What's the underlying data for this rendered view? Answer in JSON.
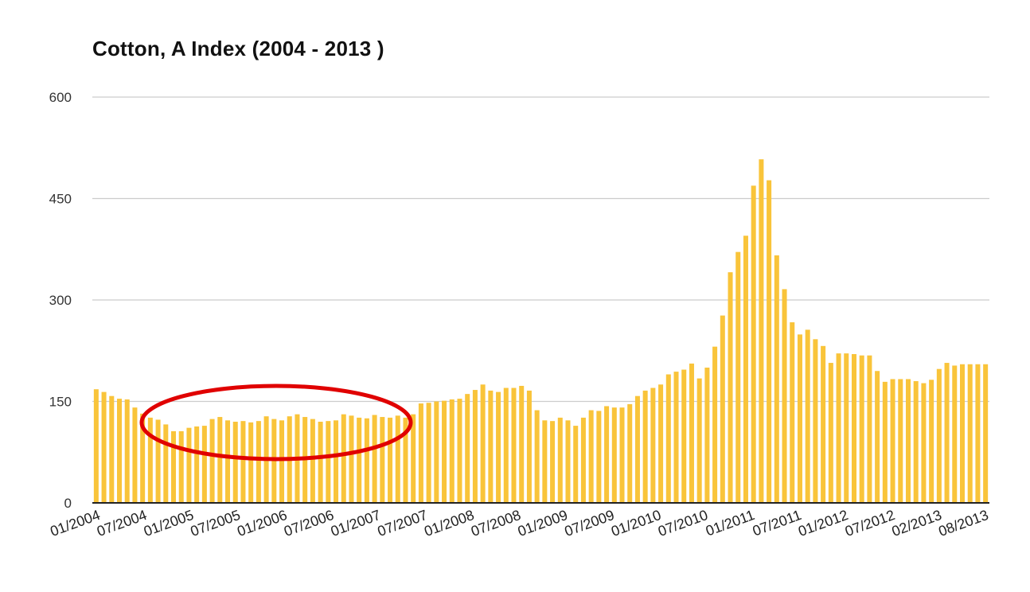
{
  "chart_data": {
    "type": "bar",
    "title": "Cotton, A Index (2004 - 2013 )",
    "xlabel": "",
    "ylabel": "",
    "ylim": [
      0,
      600
    ],
    "yticks": [
      0,
      150,
      300,
      450,
      600
    ],
    "grid": true,
    "legend": "none",
    "bar_color": "#f9c43a",
    "annotation": {
      "shape": "ellipse",
      "color": "#e00000",
      "from": "01/2005",
      "to": "07/2007"
    },
    "x_tick_labels": [
      "01/2004",
      "07/2004",
      "01/2005",
      "07/2005",
      "01/2006",
      "07/2006",
      "01/2007",
      "07/2007",
      "01/2008",
      "07/2008",
      "01/2009",
      "07/2009",
      "01/2010",
      "07/2010",
      "01/2011",
      "07/2011",
      "01/2012",
      "07/2012",
      "02/2013",
      "08/2013"
    ],
    "values": [
      168,
      164,
      158,
      154,
      153,
      141,
      132,
      126,
      123,
      116,
      106,
      106,
      111,
      113,
      114,
      124,
      127,
      122,
      120,
      121,
      119,
      121,
      128,
      124,
      122,
      128,
      131,
      127,
      124,
      120,
      121,
      122,
      131,
      129,
      126,
      125,
      130,
      127,
      126,
      129,
      126,
      131,
      147,
      148,
      150,
      151,
      153,
      154,
      161,
      167,
      175,
      166,
      164,
      170,
      170,
      173,
      166,
      137,
      122,
      121,
      126,
      122,
      114,
      126,
      137,
      136,
      143,
      141,
      141,
      146,
      158,
      166,
      170,
      175,
      190,
      194,
      197,
      206,
      184,
      200,
      231,
      277,
      341,
      371,
      395,
      469,
      508,
      477,
      366,
      316,
      267,
      249,
      256,
      242,
      232,
      207,
      221,
      221,
      220,
      218,
      218,
      195,
      179,
      183,
      183,
      183,
      180,
      177,
      182,
      198,
      207,
      203,
      205,
      205,
      205,
      205
    ],
    "series": [
      {
        "values": "values"
      }
    ]
  }
}
